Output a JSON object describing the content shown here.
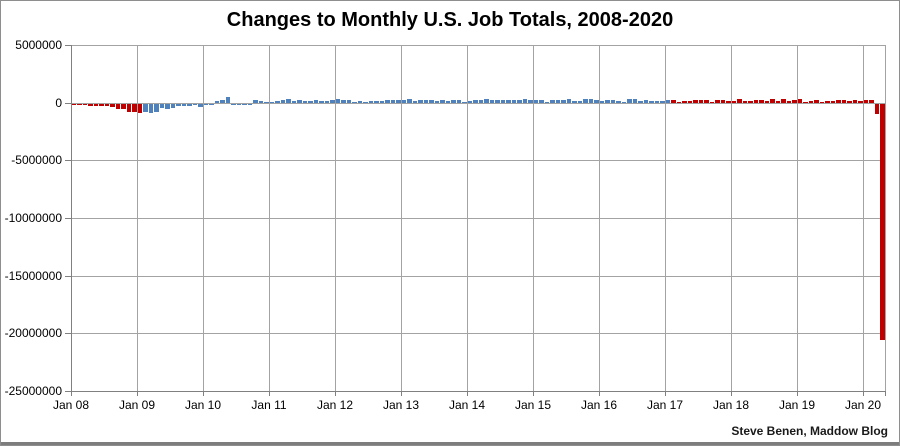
{
  "attribution": "Steve Benen, Maddow Blog",
  "colors": {
    "negative_positive_republican_era": "#C00000",
    "democrat_era": "#4F81BD",
    "gridline": "#a3a3a3",
    "axis": "#808080",
    "background": "#ffffff",
    "frame_border": "#8e8e8e"
  },
  "chart_data": {
    "type": "bar",
    "title": "Changes to Monthly U.S. Job Totals, 2008-2020",
    "xlabel": "",
    "ylabel": "",
    "x_unit": "month",
    "x_start_label": "Jan 08",
    "ylim": [
      -25000000,
      5000000
    ],
    "grid": true,
    "legend": false,
    "y_ticks": [
      {
        "value": 5000000,
        "label": "5000000"
      },
      {
        "value": 0,
        "label": "0"
      },
      {
        "value": -5000000,
        "label": "-5000000"
      },
      {
        "value": -10000000,
        "label": "-10000000"
      },
      {
        "value": -15000000,
        "label": "-15000000"
      },
      {
        "value": -20000000,
        "label": "-20000000"
      },
      {
        "value": -25000000,
        "label": "-25000000"
      }
    ],
    "x_ticks": [
      {
        "index": 0,
        "label": "Jan 08"
      },
      {
        "index": 12,
        "label": "Jan 09"
      },
      {
        "index": 24,
        "label": "Jan 10"
      },
      {
        "index": 36,
        "label": "Jan 11"
      },
      {
        "index": 48,
        "label": "Jan 12"
      },
      {
        "index": 60,
        "label": "Jan 13"
      },
      {
        "index": 72,
        "label": "Jan 14"
      },
      {
        "index": 84,
        "label": "Jan 15"
      },
      {
        "index": 96,
        "label": "Jan 16"
      },
      {
        "index": 108,
        "label": "Jan 17"
      },
      {
        "index": 120,
        "label": "Jan 18"
      },
      {
        "index": 132,
        "label": "Jan 19"
      },
      {
        "index": 144,
        "label": "Jan 20"
      }
    ],
    "color_segments": [
      {
        "from": 0,
        "to": 12,
        "color": "#C00000"
      },
      {
        "from": 13,
        "to": 108,
        "color": "#4F81BD"
      },
      {
        "from": 109,
        "to": 147,
        "color": "#C00000"
      }
    ],
    "values": [
      -17000,
      -83000,
      -72000,
      -214000,
      -182000,
      -172000,
      -210000,
      -259000,
      -452000,
      -474000,
      -765000,
      -697000,
      -783000,
      -743000,
      -800000,
      -695000,
      -361000,
      -482000,
      -339000,
      -231000,
      -199000,
      -202000,
      -42000,
      -270000,
      -40000,
      -35000,
      163000,
      251000,
      516000,
      -122000,
      -61000,
      -42000,
      -57000,
      241000,
      137000,
      71000,
      70000,
      168000,
      212000,
      322000,
      102000,
      217000,
      106000,
      122000,
      221000,
      183000,
      164000,
      196000,
      360000,
      226000,
      243000,
      96000,
      110000,
      88000,
      160000,
      150000,
      161000,
      225000,
      203000,
      214000,
      197000,
      280000,
      141000,
      203000,
      199000,
      201000,
      149000,
      202000,
      164000,
      237000,
      274000,
      84000,
      144000,
      222000,
      203000,
      304000,
      229000,
      267000,
      243000,
      203000,
      271000,
      243000,
      321000,
      256000,
      221000,
      265000,
      84000,
      251000,
      273000,
      228000,
      277000,
      150000,
      149000,
      295000,
      280000,
      271000,
      168000,
      233000,
      221000,
      153000,
      43000,
      297000,
      291000,
      176000,
      249000,
      124000,
      164000,
      155000,
      216000,
      232000,
      50000,
      175000,
      155000,
      239000,
      190000,
      221000,
      14000,
      271000,
      216000,
      175000,
      176000,
      324000,
      155000,
      175000,
      268000,
      208000,
      178000,
      282000,
      108000,
      277000,
      119000,
      227000,
      312000,
      56000,
      153000,
      216000,
      62000,
      178000,
      166000,
      219000,
      208000,
      185000,
      261000,
      184000,
      214000,
      251000,
      -881000,
      -20500000
    ]
  }
}
